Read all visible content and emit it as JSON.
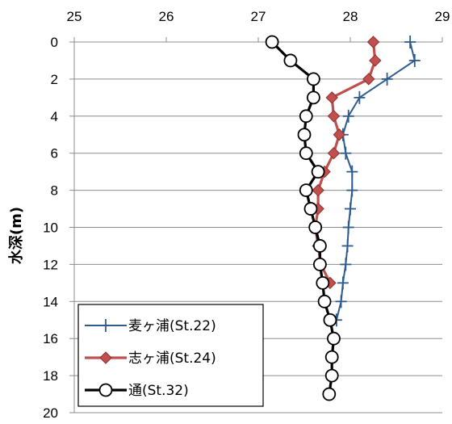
{
  "chart_data": {
    "type": "line",
    "title": "",
    "xlabel": "",
    "ylabel": "水深(m)",
    "xlim": [
      25,
      29
    ],
    "ylim": [
      0,
      20
    ],
    "y_inverted": true,
    "x_axis_position": "top",
    "x_ticks": [
      "25",
      "26",
      "27",
      "28",
      "29"
    ],
    "y_ticks": [
      "0",
      "2",
      "4",
      "6",
      "8",
      "10",
      "12",
      "14",
      "16",
      "18",
      "20"
    ],
    "grid": "horizontal",
    "legend_position": "bottom-left",
    "series": [
      {
        "name": "麦ヶ浦(St.22)",
        "color": "#2e5b8e",
        "marker": "plus",
        "x": [
          28.65,
          28.7,
          28.4,
          28.1,
          27.98,
          27.92,
          27.95,
          28.02,
          28.02,
          28.0,
          27.98,
          27.97,
          27.95,
          27.92,
          27.9,
          27.85
        ],
        "y": [
          0,
          1,
          2,
          3,
          4,
          5,
          6,
          7,
          8,
          9,
          10,
          11,
          12,
          13,
          14,
          15
        ]
      },
      {
        "name": "志ヶ浦(St.24)",
        "color": "#c0504d",
        "marker": "diamond",
        "x": [
          28.25,
          28.27,
          28.2,
          27.8,
          27.82,
          27.88,
          27.82,
          27.72,
          27.65,
          27.65,
          27.62,
          27.65,
          27.68,
          27.78
        ],
        "y": [
          0,
          1,
          2,
          3,
          4,
          5,
          6,
          7,
          8,
          9,
          10,
          11,
          12,
          13
        ]
      },
      {
        "name": "通(St.32)",
        "color": "#000000",
        "marker": "circle",
        "x": [
          27.15,
          27.35,
          27.6,
          27.6,
          27.52,
          27.5,
          27.52,
          27.65,
          27.52,
          27.57,
          27.62,
          27.67,
          27.67,
          27.7,
          27.72,
          27.78,
          27.82,
          27.8,
          27.8,
          27.77
        ],
        "y": [
          0,
          1,
          2,
          3,
          4,
          5,
          6,
          7,
          8,
          9,
          10,
          11,
          12,
          13,
          14,
          15,
          16,
          17,
          18,
          19
        ]
      }
    ]
  }
}
